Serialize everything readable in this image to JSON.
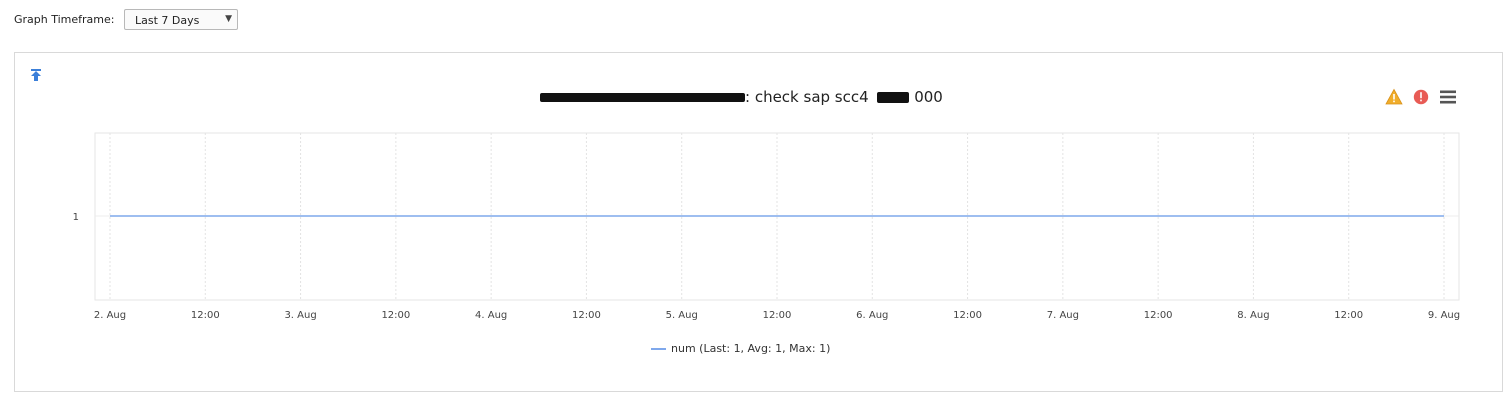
{
  "toolbar": {
    "timeframe_label": "Graph Timeframe:",
    "timeframe_value": "Last 7 Days"
  },
  "chart_panel": {
    "title_suffix": ": check sap scc4",
    "title_code": "000",
    "icons": [
      "pin-icon",
      "warning-icon",
      "error-icon",
      "menu-icon"
    ],
    "colors": {
      "series_line": "#7fa8ec",
      "warning": "#f0ad2a",
      "error": "#e85b55"
    }
  },
  "chart_data": {
    "type": "line",
    "x": [
      "2. Aug",
      "12:00",
      "3. Aug",
      "12:00",
      "4. Aug",
      "12:00",
      "5. Aug",
      "12:00",
      "6. Aug",
      "12:00",
      "7. Aug",
      "12:00",
      "8. Aug",
      "12:00",
      "9. Aug"
    ],
    "series": [
      {
        "name": "num",
        "values": [
          1,
          1,
          1,
          1,
          1,
          1,
          1,
          1,
          1,
          1,
          1,
          1,
          1,
          1,
          1
        ]
      }
    ],
    "yticks": [
      "1"
    ],
    "legend": {
      "text": "num (Last: 1, Avg: 1, Max: 1)",
      "placement": "bottom-center"
    },
    "grid": true
  }
}
